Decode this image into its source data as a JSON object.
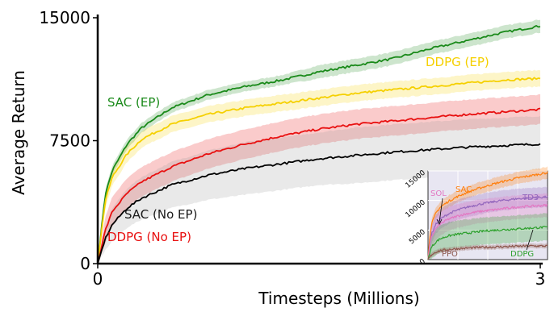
{
  "chart_data": [
    {
      "type": "line",
      "xlabel": "Timesteps (Millions)",
      "ylabel": "Average Return",
      "xlim": [
        0,
        3
      ],
      "ylim": [
        0,
        15000
      ],
      "xticks": [
        "0",
        "3"
      ],
      "yticks": [
        "0",
        "7500",
        "15000"
      ],
      "grid": false,
      "legend": "none; series labelled directly on the plot",
      "series": [
        {
          "name": "SAC (EP)",
          "color": "#1a8a1a",
          "band_color": "#1a8a1a",
          "x": [
            0,
            0.05,
            0.1,
            0.2,
            0.3,
            0.5,
            0.75,
            1.0,
            1.25,
            1.5,
            1.75,
            2.0,
            2.25,
            2.5,
            2.75,
            3.0
          ],
          "y": [
            0,
            4200,
            5700,
            7300,
            8300,
            9500,
            10300,
            10800,
            11200,
            11700,
            12100,
            12500,
            13100,
            13600,
            14100,
            14500
          ],
          "spread": [
            0,
            300,
            300,
            300,
            300,
            300,
            300,
            300,
            300,
            400,
            400,
            400,
            400,
            400,
            400,
            400
          ]
        },
        {
          "name": "DDPG (EP)",
          "color": "#f5d000",
          "band_color": "#f5d000",
          "x": [
            0,
            0.05,
            0.1,
            0.2,
            0.3,
            0.5,
            0.75,
            1.0,
            1.25,
            1.5,
            1.75,
            2.0,
            2.25,
            2.5,
            2.75,
            3.0
          ],
          "y": [
            0,
            3800,
            5300,
            6700,
            7600,
            8500,
            9100,
            9500,
            9800,
            10100,
            10400,
            10600,
            10800,
            11000,
            11200,
            11300
          ],
          "spread": [
            0,
            500,
            500,
            500,
            500,
            500,
            500,
            500,
            500,
            500,
            500,
            500,
            500,
            500,
            500,
            500
          ]
        },
        {
          "name": "DDPG (No EP)",
          "color": "#e81010",
          "band_color": "#e81010",
          "x": [
            0,
            0.05,
            0.1,
            0.2,
            0.3,
            0.5,
            0.75,
            1.0,
            1.25,
            1.5,
            1.75,
            2.0,
            2.25,
            2.5,
            2.75,
            3.0
          ],
          "y": [
            0,
            2000,
            3200,
            4300,
            5000,
            5900,
            6700,
            7300,
            7800,
            8200,
            8500,
            8700,
            8900,
            9100,
            9250,
            9400
          ],
          "spread": [
            0,
            800,
            900,
            900,
            900,
            900,
            900,
            900,
            900,
            900,
            900,
            900,
            900,
            900,
            900,
            900
          ]
        },
        {
          "name": "SAC (No EP)",
          "color": "#000000",
          "band_color": "#9a9a9a",
          "x": [
            0,
            0.05,
            0.1,
            0.2,
            0.3,
            0.5,
            0.75,
            1.0,
            1.25,
            1.5,
            1.75,
            2.0,
            2.25,
            2.5,
            2.75,
            3.0
          ],
          "y": [
            0,
            1500,
            2400,
            3400,
            4000,
            4800,
            5400,
            5800,
            6100,
            6400,
            6600,
            6800,
            6950,
            7100,
            7200,
            7300
          ],
          "spread": [
            0,
            700,
            1000,
            1200,
            1300,
            1400,
            1500,
            1600,
            1600,
            1600,
            1700,
            1700,
            1700,
            1700,
            1700,
            1700
          ]
        }
      ]
    },
    {
      "type": "line",
      "inset": "bottom-right",
      "ylim": [
        0,
        15000
      ],
      "yticks": [
        "0",
        "5000",
        "10000",
        "15000"
      ],
      "grid": true,
      "series": [
        {
          "name": "SAC",
          "color": "#ff7f0e",
          "x": [
            0,
            0.05,
            0.1,
            0.2,
            0.3,
            0.5,
            0.75,
            1.0,
            1.25,
            1.5,
            1.75,
            2.0,
            2.25,
            2.5,
            2.75,
            3.0
          ],
          "y": [
            0,
            4500,
            6200,
            7900,
            8800,
            9800,
            10700,
            11400,
            12000,
            12500,
            13000,
            13400,
            13800,
            14100,
            14400,
            14700
          ],
          "spread": [
            0,
            600,
            800,
            900,
            900,
            1000,
            1000,
            1000,
            1000,
            1000,
            1000,
            1000,
            1000,
            1000,
            1000,
            1000
          ]
        },
        {
          "name": "TD3",
          "color": "#9467bd",
          "x": [
            0,
            0.05,
            0.1,
            0.2,
            0.3,
            0.5,
            0.75,
            1.0,
            1.25,
            1.5,
            1.75,
            2.0,
            2.25,
            2.5,
            2.75,
            3.0
          ],
          "y": [
            0,
            3000,
            4500,
            6000,
            6800,
            7700,
            8400,
            8900,
            9300,
            9600,
            9900,
            10100,
            10300,
            10400,
            10500,
            10600
          ],
          "spread": [
            0,
            1200,
            1500,
            1600,
            1700,
            1700,
            1700,
            1700,
            1700,
            1700,
            1700,
            1700,
            1700,
            1700,
            1700,
            1700
          ]
        },
        {
          "name": "SOL",
          "color": "#e377c2",
          "x": [
            0,
            0.05,
            0.1,
            0.2,
            0.3,
            0.5,
            0.75,
            1.0,
            1.25,
            1.5,
            1.75,
            2.0,
            2.25,
            2.5,
            2.75,
            3.0
          ],
          "y": [
            0,
            2800,
            4000,
            5300,
            6000,
            6800,
            7400,
            7800,
            8100,
            8300,
            8500,
            8700,
            8900,
            9000,
            9100,
            9200
          ],
          "spread": [
            0,
            1500,
            1800,
            2000,
            2000,
            2000,
            2000,
            2000,
            2000,
            2000,
            2000,
            2000,
            2000,
            2000,
            2000,
            2000
          ]
        },
        {
          "name": "DDPG",
          "color": "#2ca02c",
          "x": [
            0,
            0.05,
            0.1,
            0.2,
            0.3,
            0.5,
            0.75,
            1.0,
            1.25,
            1.5,
            1.75,
            2.0,
            2.25,
            2.5,
            2.75,
            3.0
          ],
          "y": [
            0,
            1400,
            2200,
            3000,
            3500,
            4000,
            4300,
            4500,
            4700,
            4900,
            5000,
            5100,
            5200,
            5300,
            5400,
            5500
          ],
          "spread": [
            0,
            1500,
            2000,
            2200,
            2300,
            2300,
            2300,
            2300,
            2300,
            2300,
            2300,
            2300,
            2300,
            2300,
            2300,
            2300
          ]
        },
        {
          "name": "PPO",
          "color": "#8c564b",
          "x": [
            0,
            0.05,
            0.1,
            0.2,
            0.3,
            0.5,
            0.75,
            1.0,
            1.25,
            1.5,
            1.75,
            2.0,
            2.25,
            2.5,
            2.75,
            3.0
          ],
          "y": [
            0,
            500,
            900,
            1300,
            1500,
            1700,
            1850,
            1950,
            2050,
            2100,
            2150,
            2200,
            2250,
            2300,
            2300,
            2300
          ],
          "spread": [
            0,
            300,
            400,
            400,
            400,
            400,
            400,
            400,
            400,
            400,
            400,
            400,
            400,
            400,
            400,
            400
          ]
        }
      ]
    }
  ]
}
